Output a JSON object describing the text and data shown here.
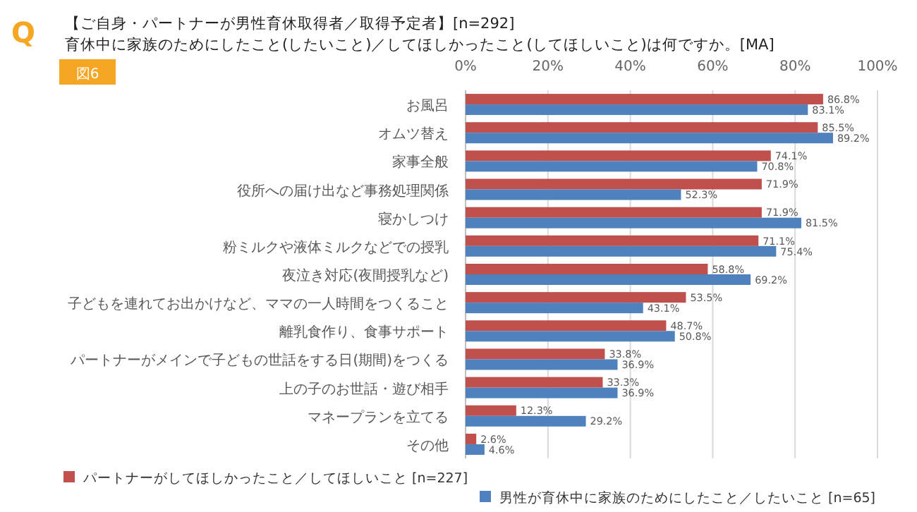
{
  "chart_data": {
    "type": "bar",
    "orientation": "horizontal",
    "title": "【ご自身・パートナーが男性育休取得者／取得予定者】[n=292]",
    "subtitle": "育休中に家族のためにしたこと(したいこと)／してほしかったこと(してほしいこと)は何ですか。[MA]",
    "annotations": [
      "Q",
      "図6"
    ],
    "categories": [
      "お風呂",
      "オムツ替え",
      "家事全般",
      "役所への届け出など事務処理関係",
      "寝かしつけ",
      "粉ミルクや液体ミルクなどでの授乳",
      "夜泣き対応(夜間授乳など)",
      "子どもを連れてお出かけなど、ママの一人時間をつくること",
      "離乳食作り、食事サポート",
      "パートナーがメインで子どもの世話をする日(期間)をつくる",
      "上の子のお世話・遊び相手",
      "マネープランを立てる",
      "その他"
    ],
    "series": [
      {
        "name": "パートナーがしてほしかったこと／してほしいこと [n=227]",
        "color": "#c0504d",
        "values": [
          86.8,
          85.5,
          74.1,
          71.9,
          71.9,
          71.1,
          58.8,
          53.5,
          48.7,
          33.8,
          33.3,
          12.3,
          2.6
        ],
        "value_labels": [
          "86.8%",
          "85.5%",
          "74.1%",
          "71.9%",
          "71.9%",
          "71.1%",
          "58.8%",
          "53.5%",
          "48.7%",
          "33.8%",
          "33.3%",
          "12.3%",
          "2.6%"
        ]
      },
      {
        "name": "男性が育休中に家族のためにしたこと／したいこと [n=65]",
        "color": "#4f81bd",
        "values": [
          83.1,
          89.2,
          70.8,
          52.3,
          81.5,
          75.4,
          69.2,
          43.1,
          50.8,
          36.9,
          36.9,
          29.2,
          4.6
        ],
        "value_labels": [
          "83.1%",
          "89.2%",
          "70.8%",
          "52.3%",
          "81.5%",
          "75.4%",
          "69.2%",
          "43.1%",
          "50.8%",
          "36.9%",
          "36.9%",
          "29.2%",
          "4.6%"
        ]
      }
    ],
    "xlim": [
      0,
      100
    ],
    "xticks": [
      {
        "value": 0,
        "label": "0%"
      },
      {
        "value": 20,
        "label": "20%"
      },
      {
        "value": 40,
        "label": "40%"
      },
      {
        "value": 60,
        "label": "60%"
      },
      {
        "value": 80,
        "label": "80%"
      },
      {
        "value": 100,
        "label": "100%"
      }
    ],
    "grid": "x",
    "legend": "bottom"
  }
}
